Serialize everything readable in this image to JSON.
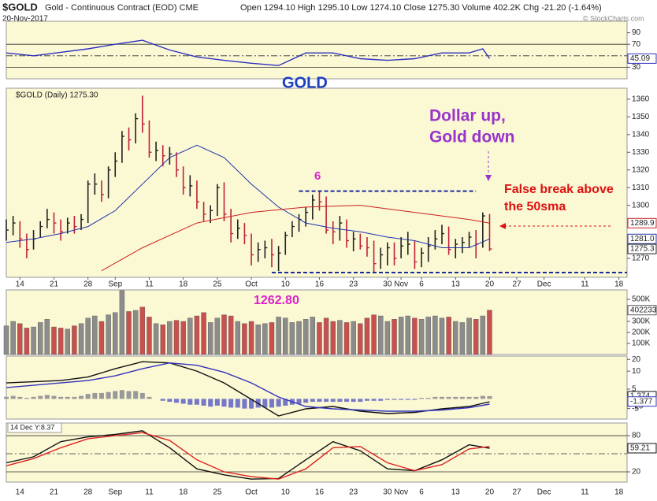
{
  "header": {
    "symbol": "$GOLD",
    "name": "Gold - Continuous Contract (EOD) CME",
    "date": "20-Nov-2017",
    "stats": "Open 1294.10 High 1295.10 Low 1274.10 Close 1275.30 Volume 402.2K Chg -21.20 (-1.64%)",
    "credit": "© StockCharts.com"
  },
  "x_axis": {
    "xlim": [
      0,
      91.2
    ],
    "xticks": [
      {
        "value": 2,
        "label": "14"
      },
      {
        "value": 7,
        "label": "21"
      },
      {
        "value": 12,
        "label": "28"
      },
      {
        "value": 16,
        "label": "Sep"
      },
      {
        "value": 21,
        "label": "11"
      },
      {
        "value": 26,
        "label": "18"
      },
      {
        "value": 31,
        "label": "25"
      },
      {
        "value": 36,
        "label": "Oct"
      },
      {
        "value": 41,
        "label": "10"
      },
      {
        "value": 46,
        "label": "16"
      },
      {
        "value": 51,
        "label": "23"
      },
      {
        "value": 56,
        "label": "30"
      },
      {
        "value": 58,
        "label": "Nov"
      },
      {
        "value": 61,
        "label": "6"
      },
      {
        "value": 66,
        "label": "13"
      },
      {
        "value": 71,
        "label": "20"
      },
      {
        "value": 75,
        "label": "27"
      },
      {
        "value": 79,
        "label": "Dec"
      },
      {
        "value": 85,
        "label": "11"
      },
      {
        "value": 90,
        "label": "18"
      }
    ]
  },
  "chart_data": [
    {
      "type": "line",
      "ylim": [
        10,
        110
      ],
      "yticks": [
        90,
        70,
        30
      ],
      "reference_lines": [
        70,
        30
      ],
      "center_line": 50,
      "series": [
        {
          "color": "#3030c0",
          "x": [
            0,
            4,
            8,
            12,
            16,
            20,
            24,
            28,
            32,
            36,
            40,
            44,
            48,
            52,
            56,
            60,
            64,
            68,
            70,
            71
          ],
          "values": [
            55,
            50,
            56,
            62,
            70,
            77,
            60,
            48,
            42,
            37,
            33,
            55,
            55,
            45,
            42,
            45,
            55,
            55,
            62,
            45.09
          ]
        }
      ],
      "last_labels": [
        {
          "value": 45.09,
          "color": "#3030c0"
        }
      ]
    },
    {
      "type": "hlc",
      "title": "$GOLD (Daily) 1275.30",
      "ylim": [
        1259.3,
        1366.2
      ],
      "yticks": [
        1270,
        1300,
        1310,
        1320,
        1330,
        1340,
        1350,
        1360
      ],
      "up_color": "#222222",
      "down_color": "#c0203a",
      "close": [
        1286,
        1290,
        1281,
        1275,
        1281,
        1288,
        1292,
        1290,
        1285,
        1290,
        1288,
        1292,
        1312,
        1312,
        1306,
        1320,
        1325,
        1339,
        1337,
        1349,
        1346,
        1330,
        1331,
        1328,
        1329,
        1320,
        1310,
        1311,
        1302,
        1295,
        1297,
        1310,
        1295,
        1284,
        1287,
        1283,
        1272,
        1275,
        1276,
        1272,
        1273,
        1283,
        1288,
        1292,
        1296,
        1303,
        1302,
        1286,
        1285,
        1290,
        1280,
        1281,
        1277,
        1276,
        1267,
        1272,
        1276,
        1270,
        1277,
        1278,
        1268,
        1273,
        1277,
        1281,
        1284,
        1275,
        1278,
        1279,
        1282,
        1278,
        1294,
        1275.3
      ],
      "high": [
        1292,
        1294,
        1291,
        1284,
        1286,
        1291,
        1298,
        1296,
        1292,
        1293,
        1294,
        1295,
        1314,
        1318,
        1314,
        1322,
        1330,
        1342,
        1344,
        1352,
        1362,
        1348,
        1336,
        1334,
        1333,
        1330,
        1322,
        1317,
        1314,
        1302,
        1300,
        1312,
        1313,
        1298,
        1292,
        1290,
        1284,
        1279,
        1280,
        1281,
        1277,
        1285,
        1291,
        1295,
        1299,
        1306,
        1308,
        1305,
        1291,
        1294,
        1292,
        1285,
        1284,
        1282,
        1280,
        1276,
        1279,
        1279,
        1282,
        1285,
        1280,
        1276,
        1282,
        1286,
        1289,
        1288,
        1281,
        1282,
        1285,
        1286,
        1296,
        1295.1
      ],
      "low": [
        1280,
        1283,
        1276,
        1270,
        1275,
        1282,
        1287,
        1284,
        1280,
        1284,
        1284,
        1286,
        1290,
        1306,
        1302,
        1304,
        1316,
        1324,
        1331,
        1335,
        1341,
        1327,
        1325,
        1322,
        1323,
        1316,
        1306,
        1305,
        1298,
        1291,
        1290,
        1294,
        1291,
        1279,
        1281,
        1278,
        1266,
        1268,
        1270,
        1265,
        1262.8,
        1272,
        1282,
        1285,
        1288,
        1292,
        1297,
        1284,
        1278,
        1280,
        1276,
        1274,
        1275,
        1271,
        1262,
        1264,
        1266,
        1266,
        1270,
        1272,
        1264,
        1265,
        1268,
        1275,
        1278,
        1272,
        1270,
        1273,
        1276,
        1270,
        1276,
        1274.1
      ],
      "series": [
        {
          "color": "#2233aa",
          "x": [
            0,
            4,
            8,
            12,
            16,
            20,
            24,
            28,
            32,
            36,
            40,
            44,
            48,
            52,
            56,
            60,
            64,
            68,
            71
          ],
          "values": [
            1279,
            1281,
            1284,
            1288,
            1297,
            1312,
            1327,
            1334,
            1327,
            1312,
            1299,
            1290,
            1287,
            1285,
            1282,
            1280,
            1276,
            1276,
            1281
          ]
        },
        {
          "color": "#cc2020",
          "x": [
            14,
            20,
            28,
            36,
            44,
            52,
            60,
            68,
            71
          ],
          "values": [
            1263,
            1276,
            1290,
            1296,
            1299,
            1300,
            1296,
            1292,
            1289.9
          ]
        }
      ],
      "levels": [
        {
          "value": 1308,
          "x": [
            43,
            69
          ]
        },
        {
          "value": 1262,
          "x": [
            39,
            91.2
          ]
        }
      ],
      "annotations": [
        "GOLD",
        "Dollar up,",
        "Gold down",
        "6",
        "False break above",
        "the 50sma"
      ],
      "last_labels": [
        {
          "value": 1289.9,
          "color": "#cc2020"
        },
        {
          "value": 1281,
          "label": "1281.0",
          "color": "#2233aa"
        },
        {
          "value": 1275.3,
          "color": "#222222"
        }
      ]
    },
    {
      "type": "bar",
      "ylim": [
        0,
        586000
      ],
      "up_color": "#8c8c8c",
      "down_color": "#c85050",
      "yticks": [
        {
          "value": 500000,
          "label": "500K"
        },
        {
          "value": 300000,
          "label": "300K"
        },
        {
          "value": 200000,
          "label": "200K"
        },
        {
          "value": 100000,
          "label": "100K"
        }
      ],
      "values": [
        260000,
        300000,
        280000,
        240000,
        250000,
        290000,
        320000,
        250000,
        240000,
        230000,
        260000,
        280000,
        330000,
        350000,
        300000,
        360000,
        380000,
        580000,
        390000,
        400000,
        430000,
        340000,
        280000,
        270000,
        300000,
        310000,
        300000,
        330000,
        350000,
        380000,
        290000,
        330000,
        360000,
        350000,
        300000,
        280000,
        300000,
        270000,
        280000,
        290000,
        340000,
        330000,
        290000,
        300000,
        320000,
        340000,
        290000,
        330000,
        300000,
        310000,
        290000,
        300000,
        280000,
        330000,
        360000,
        350000,
        300000,
        320000,
        340000,
        350000,
        330000,
        320000,
        340000,
        350000,
        330000,
        340000,
        300000,
        290000,
        330000,
        320000,
        350000,
        402233
      ],
      "annotation": "1262.80",
      "last_labels": [
        {
          "value": 402233,
          "color": "#555555"
        }
      ]
    },
    {
      "type": "line",
      "ylim": [
        -30.7,
        22.8
      ],
      "yticks": [
        20,
        10,
        -20
      ],
      "y2lim": [
        -10.4,
        22
      ],
      "y2ticks": [
        5,
        -5
      ],
      "series": [
        {
          "color": "#111111",
          "x": [
            0,
            4,
            8,
            12,
            16,
            20,
            24,
            28,
            32,
            36,
            40,
            44,
            48,
            52,
            56,
            60,
            64,
            68,
            71
          ],
          "values": [
            0,
            1,
            2,
            5,
            12,
            18,
            17,
            10,
            0,
            -14,
            -28,
            -22,
            -20,
            -24,
            -26,
            -25,
            -22,
            -20,
            -16
          ]
        },
        {
          "color": "#3333bb",
          "x": [
            0,
            4,
            8,
            12,
            16,
            20,
            24,
            28,
            32,
            36,
            40,
            44,
            48,
            52,
            56,
            60,
            64,
            68,
            71
          ],
          "values": [
            -4,
            -2,
            0,
            2,
            6,
            12,
            17,
            15,
            9,
            0,
            -12,
            -20,
            -22,
            -23,
            -24,
            -24,
            -23,
            -21,
            -18
          ]
        }
      ],
      "histogram": {
        "pos_color": "#999999",
        "neg_color": "#7777c8",
        "values": [
          1,
          1.5,
          1,
          0.5,
          1,
          1.5,
          2,
          1.5,
          1,
          1,
          1,
          1.5,
          2.5,
          3,
          3,
          3.5,
          4,
          4.5,
          4,
          4,
          3,
          1,
          0,
          -1,
          -1.5,
          -2,
          -2.5,
          -3,
          -3,
          -3.5,
          -4,
          -3.5,
          -4,
          -4.5,
          -4.5,
          -5,
          -5,
          -4.5,
          -4.5,
          -4.5,
          -4,
          -3.5,
          -3,
          -2.5,
          -2,
          -1.5,
          -1.5,
          -1.5,
          -1.5,
          -1.5,
          -1.5,
          -1.5,
          -1.5,
          -1,
          -1,
          -1,
          -0.5,
          -0.5,
          -0.5,
          -0.5,
          -0.5,
          0.5,
          0.5,
          1,
          1,
          1,
          1,
          1,
          1,
          1,
          1.5,
          1.374
        ]
      },
      "last_labels": [
        {
          "value": 1.374,
          "color": "#111111",
          "axis": "y2"
        },
        {
          "value": -1.377,
          "color": "#3333bb",
          "axis": "y2"
        }
      ]
    },
    {
      "type": "line",
      "label": "14 Dec Y:8.37",
      "ylim": [
        3,
        101
      ],
      "yticks": [
        80,
        20
      ],
      "reference_lines": [
        80,
        20
      ],
      "center_line": 50,
      "series": [
        {
          "color": "#111111",
          "x": [
            0,
            4,
            8,
            12,
            16,
            20,
            24,
            28,
            32,
            36,
            40,
            44,
            48,
            52,
            56,
            60,
            64,
            68,
            71
          ],
          "values": [
            35,
            45,
            70,
            78,
            82,
            88,
            60,
            25,
            15,
            8,
            9,
            40,
            70,
            55,
            25,
            22,
            40,
            65,
            59.21
          ]
        },
        {
          "color": "#dd2222",
          "x": [
            0,
            4,
            8,
            12,
            16,
            20,
            24,
            28,
            32,
            36,
            40,
            44,
            48,
            52,
            56,
            60,
            64,
            68,
            71
          ],
          "values": [
            30,
            42,
            60,
            75,
            80,
            85,
            72,
            40,
            20,
            12,
            8,
            25,
            60,
            62,
            35,
            22,
            32,
            58,
            62
          ]
        }
      ],
      "last_labels": [
        {
          "value": 59.21,
          "color": "#111111"
        }
      ]
    }
  ]
}
